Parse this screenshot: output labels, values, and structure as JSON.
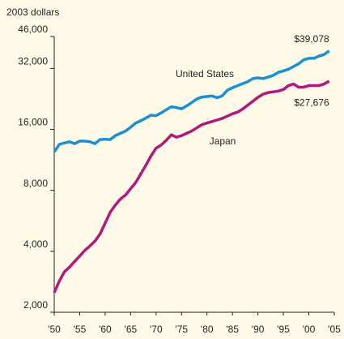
{
  "chart_data": {
    "type": "line",
    "y_label": "2003 dollars",
    "log_y": true,
    "grid": false,
    "x": [
      1950,
      1951,
      1952,
      1953,
      1954,
      1955,
      1956,
      1957,
      1958,
      1959,
      1960,
      1961,
      1962,
      1963,
      1964,
      1965,
      1966,
      1967,
      1968,
      1969,
      1970,
      1971,
      1972,
      1973,
      1974,
      1975,
      1976,
      1977,
      1978,
      1979,
      1980,
      1981,
      1982,
      1983,
      1984,
      1985,
      1986,
      1987,
      1988,
      1989,
      1990,
      1991,
      1992,
      1993,
      1994,
      1995,
      1996,
      1997,
      1998,
      1999,
      2000,
      2001,
      2002,
      2003,
      2004
    ],
    "xlim": [
      1950,
      2005
    ],
    "xticks": [
      {
        "value": 1950,
        "label": "'50"
      },
      {
        "value": 1955,
        "label": "'55"
      },
      {
        "value": 1960,
        "label": "'60"
      },
      {
        "value": 1965,
        "label": "'65"
      },
      {
        "value": 1970,
        "label": "'70"
      },
      {
        "value": 1975,
        "label": "'75"
      },
      {
        "value": 1980,
        "label": "'80"
      },
      {
        "value": 1985,
        "label": "'85"
      },
      {
        "value": 1990,
        "label": "'90"
      },
      {
        "value": 1995,
        "label": "'95"
      },
      {
        "value": 2000,
        "label": "'00"
      },
      {
        "value": 2005,
        "label": "'05"
      }
    ],
    "ylim": [
      2000,
      46000
    ],
    "yticks": [
      {
        "value": 2000,
        "label": "2,000"
      },
      {
        "value": 4000,
        "label": "4,000"
      },
      {
        "value": 8000,
        "label": "8,000"
      },
      {
        "value": 16000,
        "label": "16,000"
      },
      {
        "value": 32000,
        "label": "32,000"
      },
      {
        "value": 46000,
        "label": "46,000"
      }
    ],
    "series": [
      {
        "name": "United States",
        "color": "#1b8fd6",
        "values": [
          12370,
          13500,
          13700,
          13900,
          13600,
          14000,
          14000,
          13900,
          13600,
          14250,
          14300,
          14250,
          14900,
          15300,
          15700,
          16400,
          17200,
          17650,
          18200,
          18800,
          18700,
          19300,
          20000,
          20700,
          20500,
          20200,
          20900,
          21700,
          22600,
          23100,
          23250,
          23400,
          22900,
          23450,
          24950,
          25700,
          26300,
          26900,
          27500,
          28500,
          28750,
          28500,
          29000,
          29550,
          30600,
          31100,
          31700,
          32700,
          33750,
          35300,
          35900,
          35900,
          36800,
          37500,
          39078
        ],
        "value_labels": [
          null,
          null,
          null,
          null,
          null,
          null,
          null,
          null,
          null,
          null,
          null,
          null,
          null,
          null,
          null,
          null,
          null,
          null,
          null,
          null,
          null,
          null,
          null,
          null,
          null,
          null,
          null,
          null,
          null,
          null,
          null,
          null,
          null,
          null,
          null,
          null,
          null,
          null,
          null,
          null,
          null,
          null,
          null,
          null,
          null,
          null,
          null,
          null,
          null,
          null,
          null,
          null,
          null,
          null,
          "$39,078"
        ]
      },
      {
        "name": "Japan",
        "color": "#b0197e",
        "values": [
          2500,
          2850,
          3170,
          3340,
          3560,
          3790,
          4040,
          4250,
          4490,
          4870,
          5510,
          6240,
          6760,
          7250,
          7580,
          8150,
          8740,
          9650,
          10640,
          11830,
          12920,
          13390,
          14130,
          15040,
          14640,
          14900,
          15300,
          15700,
          16290,
          16880,
          17190,
          17490,
          17810,
          18120,
          18600,
          19100,
          19450,
          20160,
          21070,
          22030,
          23040,
          23870,
          24300,
          24520,
          24730,
          25170,
          26320,
          26800,
          25860,
          25860,
          26320,
          26320,
          26320,
          26800,
          27676
        ],
        "value_labels": [
          null,
          null,
          null,
          null,
          null,
          null,
          null,
          null,
          null,
          null,
          null,
          null,
          null,
          null,
          null,
          null,
          null,
          null,
          null,
          null,
          null,
          null,
          null,
          null,
          null,
          null,
          null,
          null,
          null,
          null,
          null,
          null,
          null,
          null,
          null,
          null,
          null,
          null,
          null,
          null,
          null,
          null,
          null,
          null,
          null,
          null,
          null,
          null,
          null,
          null,
          null,
          null,
          null,
          null,
          "$27,676"
        ]
      }
    ]
  }
}
